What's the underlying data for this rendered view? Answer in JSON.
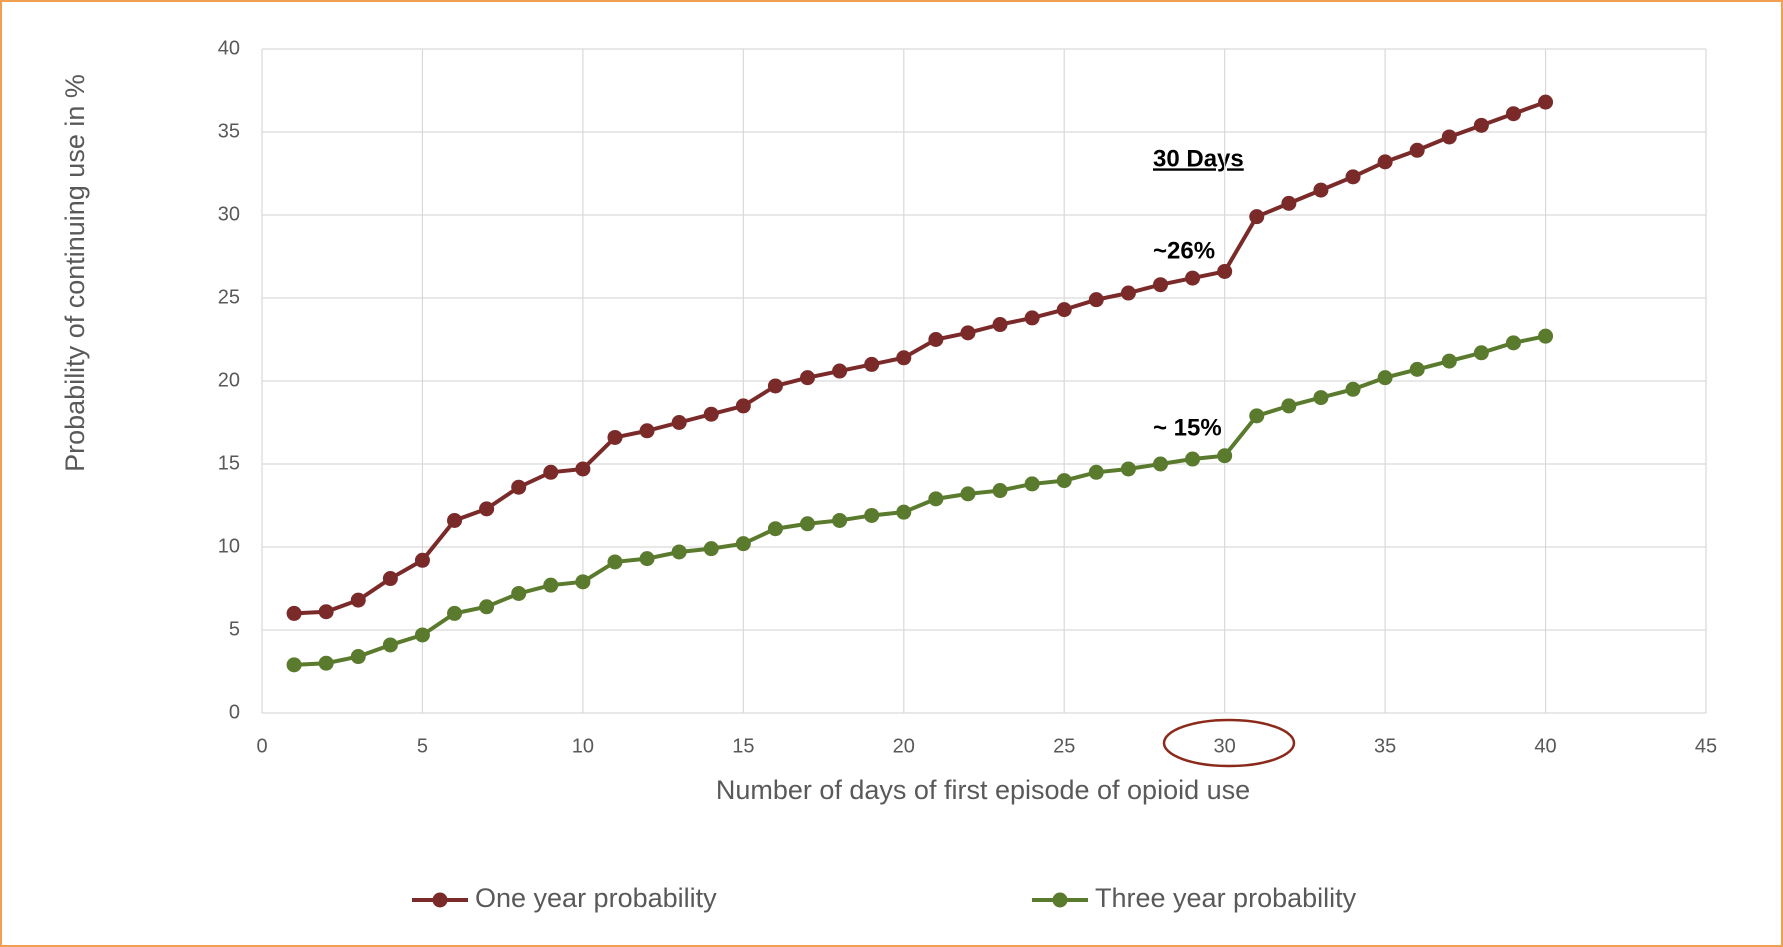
{
  "chart_data": {
    "type": "line",
    "x_label": "Number of days of first episode of opioid use",
    "y_label": "Probability of continuing use in %",
    "x": [
      1,
      2,
      3,
      4,
      5,
      6,
      7,
      8,
      9,
      10,
      11,
      12,
      13,
      14,
      15,
      16,
      17,
      18,
      19,
      20,
      21,
      22,
      23,
      24,
      25,
      26,
      27,
      28,
      29,
      30,
      31,
      32,
      33,
      34,
      35,
      36,
      37,
      38,
      39,
      40
    ],
    "series": [
      {
        "name": "One year probability",
        "color": "#7b2a2a",
        "values": [
          6.0,
          6.1,
          6.8,
          8.1,
          9.2,
          11.6,
          12.3,
          13.6,
          14.5,
          14.7,
          16.6,
          17.0,
          17.5,
          18.0,
          18.5,
          19.7,
          20.2,
          20.6,
          21.0,
          21.4,
          22.5,
          22.9,
          23.4,
          23.8,
          24.3,
          24.9,
          25.3,
          25.8,
          26.2,
          26.6,
          29.9,
          30.7,
          31.5,
          32.3,
          33.2,
          33.9,
          34.7,
          35.4,
          36.1,
          36.8
        ]
      },
      {
        "name": "Three year probability",
        "color": "#5a7a2e",
        "values": [
          2.9,
          3.0,
          3.4,
          4.1,
          4.7,
          6.0,
          6.4,
          7.2,
          7.7,
          7.9,
          9.1,
          9.3,
          9.7,
          9.9,
          10.2,
          11.1,
          11.4,
          11.6,
          11.9,
          12.1,
          12.9,
          13.2,
          13.4,
          13.8,
          14.0,
          14.5,
          14.7,
          15.0,
          15.3,
          15.5,
          17.9,
          18.5,
          19.0,
          19.5,
          20.2,
          20.7,
          21.2,
          21.7,
          22.3,
          22.7
        ]
      }
    ],
    "annotations": [
      "30 Days",
      "~26%",
      "~ 15%"
    ],
    "xlim": [
      0,
      45
    ],
    "xticks": [
      0,
      5,
      10,
      15,
      20,
      25,
      30,
      35,
      40,
      45
    ],
    "ylim": [
      0,
      40
    ],
    "yticks": [
      0,
      5,
      10,
      15,
      20,
      25,
      30,
      35,
      40
    ],
    "grid": true,
    "legend": "bottom"
  }
}
